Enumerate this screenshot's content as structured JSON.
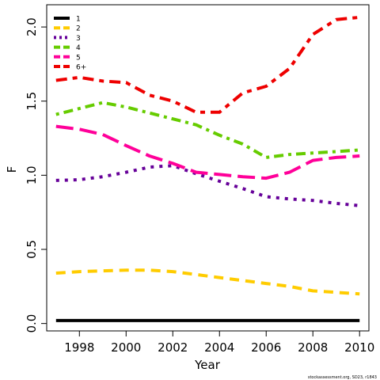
{
  "chart_data": {
    "type": "line",
    "title": "",
    "xlabel": "Year",
    "ylabel": "F",
    "xlim": [
      1996.6,
      2010.4
    ],
    "ylim": [
      -0.05,
      2.15
    ],
    "x_ticks": [
      1998,
      2000,
      2002,
      2004,
      2006,
      2008,
      2010
    ],
    "y_ticks": [
      0.0,
      0.5,
      1.0,
      1.5,
      2.0
    ],
    "y_tick_labels": [
      "0.0",
      "0.5",
      "1.0",
      "1.5",
      "2.0"
    ],
    "grid": false,
    "legend_position": "top-left",
    "x": [
      1997,
      1998,
      1999,
      2000,
      2001,
      2002,
      2003,
      2004,
      2005,
      2006,
      2007,
      2008,
      2009,
      2010
    ],
    "series": [
      {
        "name": "1",
        "color": "#000000",
        "dash": "solid",
        "values": [
          0.02,
          0.02,
          0.02,
          0.02,
          0.02,
          0.02,
          0.02,
          0.02,
          0.02,
          0.02,
          0.02,
          0.02,
          0.02,
          0.02
        ]
      },
      {
        "name": "2",
        "color": "#FFCC00",
        "dash": "dashed",
        "values": [
          0.34,
          0.35,
          0.355,
          0.36,
          0.36,
          0.35,
          0.33,
          0.31,
          0.29,
          0.27,
          0.25,
          0.22,
          0.21,
          0.2
        ]
      },
      {
        "name": "3",
        "color": "#660099",
        "dash": "dotted",
        "values": [
          0.965,
          0.97,
          0.99,
          1.02,
          1.055,
          1.065,
          1.01,
          0.96,
          0.91,
          0.855,
          0.84,
          0.83,
          0.81,
          0.795
        ]
      },
      {
        "name": "4",
        "color": "#66CC00",
        "dash": "dotdash",
        "values": [
          1.41,
          1.45,
          1.49,
          1.46,
          1.42,
          1.38,
          1.34,
          1.27,
          1.21,
          1.12,
          1.14,
          1.15,
          1.16,
          1.17
        ]
      },
      {
        "name": "5",
        "color": "#FF0099",
        "dash": "longdash",
        "values": [
          1.33,
          1.31,
          1.275,
          1.2,
          1.13,
          1.08,
          1.02,
          1.005,
          0.99,
          0.98,
          1.02,
          1.1,
          1.12,
          1.13
        ]
      },
      {
        "name": "6+",
        "color": "#EE0000",
        "dash": "twodash",
        "values": [
          1.64,
          1.66,
          1.635,
          1.625,
          1.54,
          1.5,
          1.425,
          1.425,
          1.555,
          1.6,
          1.72,
          1.95,
          2.05,
          2.065
        ]
      }
    ],
    "footer_note": "stockassessment.org, SD23, r1843"
  }
}
